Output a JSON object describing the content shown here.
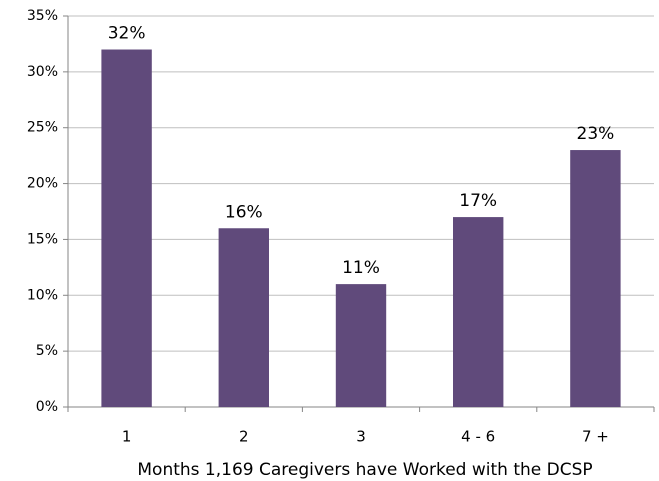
{
  "chart_data": {
    "type": "bar",
    "x_label": "Months 1,169 Caregivers have Worked with the DCSP",
    "categories": [
      "1",
      "2",
      "3",
      "4 - 6",
      "7 +"
    ],
    "values": [
      32,
      16,
      11,
      17,
      23
    ],
    "value_labels": [
      "32%",
      "16%",
      "11%",
      "17%",
      "23%"
    ],
    "color": "#604a7b",
    "ylim": [
      0,
      35
    ],
    "yticks": [
      {
        "value": 0,
        "label": "0%"
      },
      {
        "value": 5,
        "label": "5%"
      },
      {
        "value": 10,
        "label": "10%"
      },
      {
        "value": 15,
        "label": "15%"
      },
      {
        "value": 20,
        "label": "20%"
      },
      {
        "value": 25,
        "label": "25%"
      },
      {
        "value": 30,
        "label": "30%"
      },
      {
        "value": 35,
        "label": "35%"
      }
    ],
    "grid": true
  }
}
